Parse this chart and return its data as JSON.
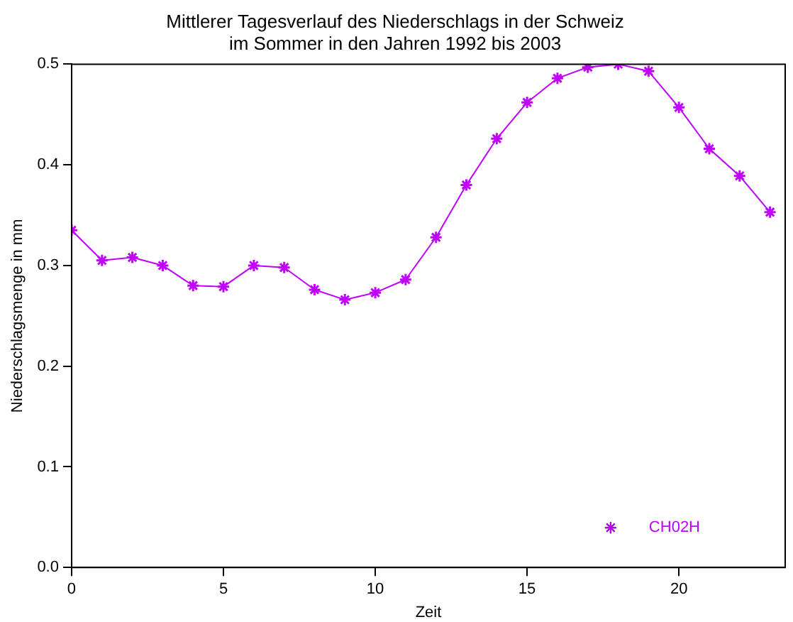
{
  "chart_data": {
    "type": "line",
    "title": "Mittlerer Tagesverlauf des Niederschlags in der Schweiz",
    "subtitle": "im Sommer in den Jahren 1992 bis 2003",
    "xlabel": "Zeit",
    "ylabel": "Niederschlagsmenge in mm",
    "x": [
      0,
      1,
      2,
      3,
      4,
      5,
      6,
      7,
      8,
      9,
      10,
      11,
      12,
      13,
      14,
      15,
      16,
      17,
      18,
      19,
      20,
      21,
      22,
      23
    ],
    "series": [
      {
        "name": "CH02H",
        "color": "#bf00ff",
        "values": [
          0.335,
          0.305,
          0.308,
          0.3,
          0.28,
          0.279,
          0.3,
          0.298,
          0.276,
          0.266,
          0.273,
          0.286,
          0.328,
          0.38,
          0.426,
          0.462,
          0.486,
          0.497,
          0.5,
          0.493,
          0.457,
          0.416,
          0.389,
          0.353
        ]
      }
    ],
    "xlim": [
      0,
      23.5
    ],
    "xticks": [
      0,
      5,
      10,
      15,
      20
    ],
    "ylim": [
      0,
      0.5
    ],
    "yticks": [
      {
        "value": 0,
        "label": "0.0"
      },
      {
        "value": 0.1,
        "label": "0.1"
      },
      {
        "value": 0.2,
        "label": "0.2"
      },
      {
        "value": 0.3,
        "label": "0.3"
      },
      {
        "value": 0.4,
        "label": "0.4"
      },
      {
        "value": 0.5,
        "label": "0.5"
      }
    ],
    "grid": false,
    "legend": "bottom right",
    "marker": "cross",
    "line_style": "solid"
  }
}
